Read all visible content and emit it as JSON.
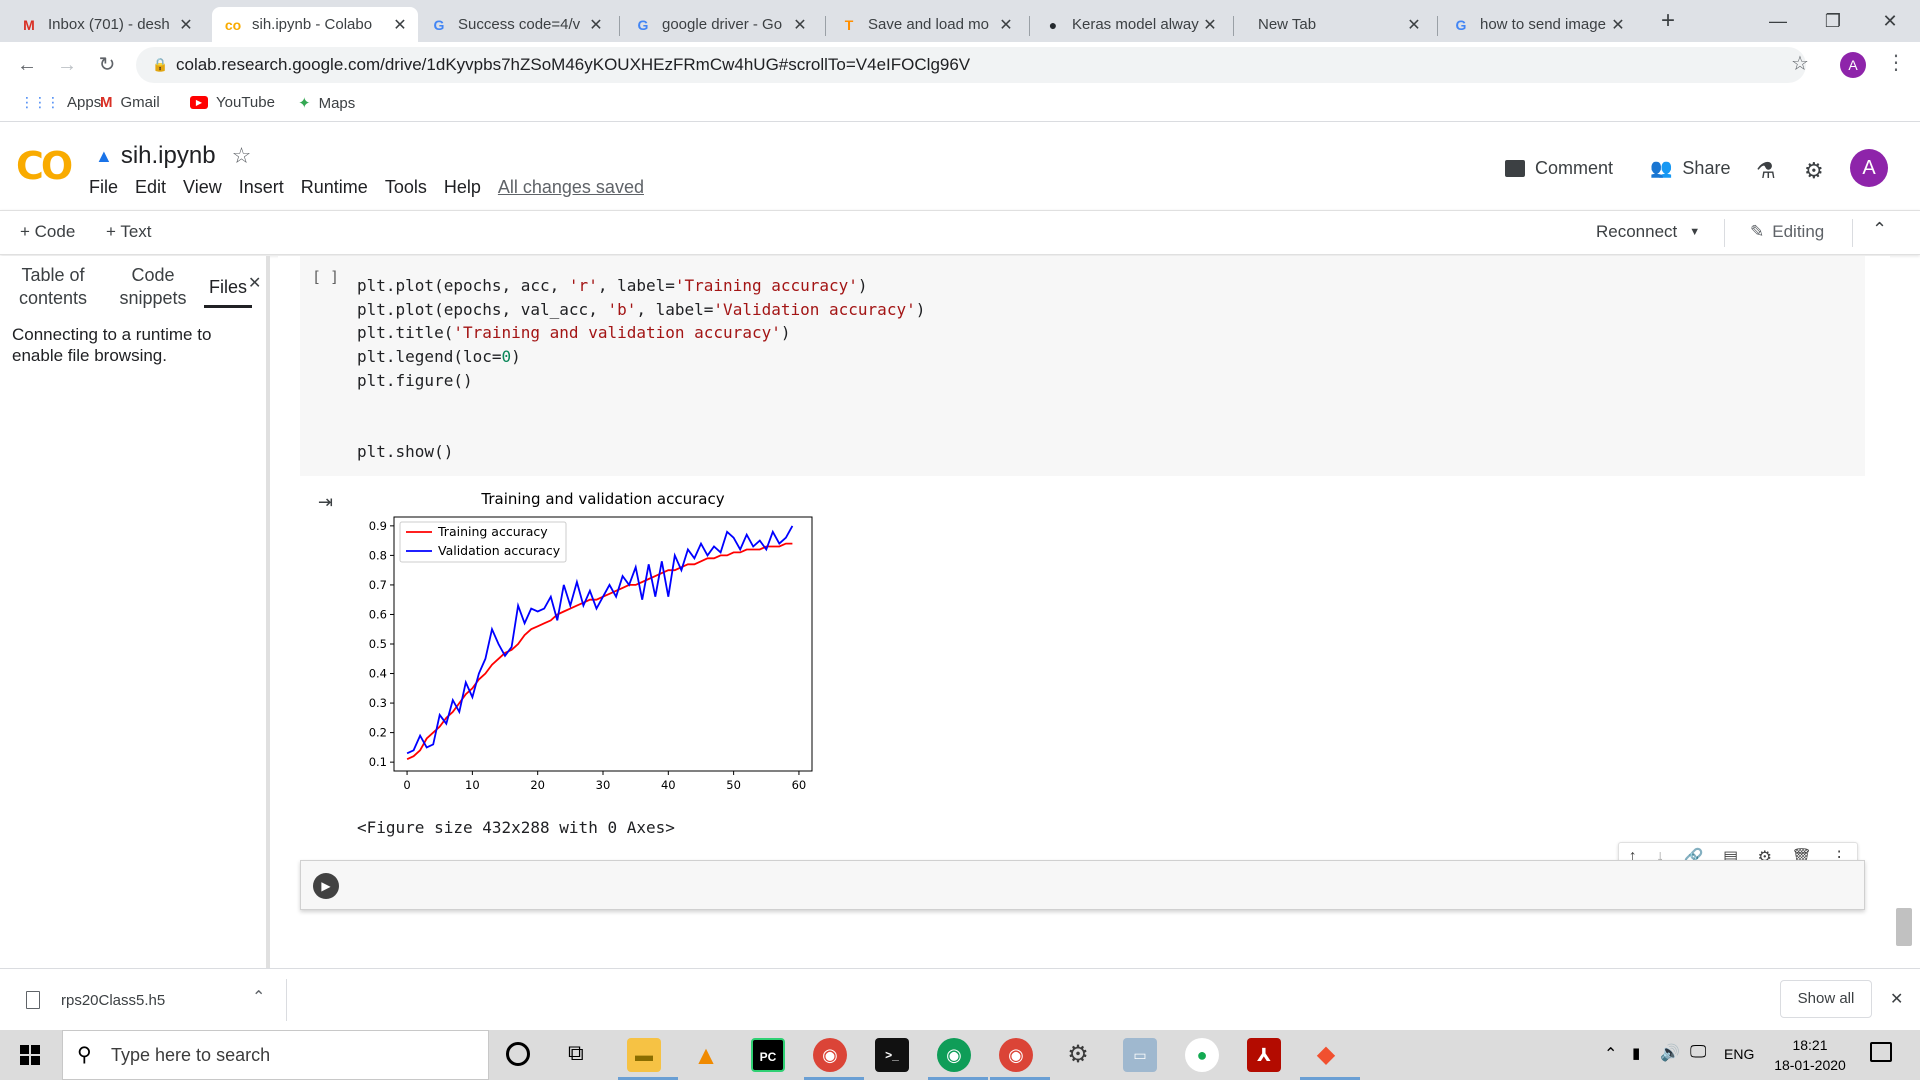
{
  "browser": {
    "tabs": [
      {
        "title": "Inbox (701) - desh",
        "icon": "gmail-icon",
        "glyph": "M",
        "color": "#d93025"
      },
      {
        "title": "sih.ipynb - Colabo",
        "icon": "colab-icon",
        "glyph": "co",
        "color": "#f9ab00"
      },
      {
        "title": "Success code=4/v",
        "icon": "google-icon",
        "glyph": "G",
        "color": "#4285f4"
      },
      {
        "title": "google driver - Go",
        "icon": "google-icon",
        "glyph": "G",
        "color": "#4285f4"
      },
      {
        "title": "Save and load mo",
        "icon": "tensorflow-icon",
        "glyph": "T",
        "color": "#ff8f00"
      },
      {
        "title": "Keras model alway",
        "icon": "github-icon",
        "glyph": "●",
        "color": "#24292e"
      },
      {
        "title": "New Tab",
        "icon": "",
        "glyph": "",
        "color": "#3c4043"
      },
      {
        "title": "how to send image",
        "icon": "google-icon",
        "glyph": "G",
        "color": "#4285f4"
      }
    ],
    "new_tab": "+",
    "url": "colab.research.google.com/drive/1dKyvpbs7hZSoM46yKOUXHEzFRmCw4hUG#scrollTo=V4eIFOClg96V",
    "profile_initial": "A",
    "bookmarks": [
      {
        "label": "Apps",
        "icon": "apps-grid-icon"
      },
      {
        "label": "Gmail",
        "icon": "gmail-icon"
      },
      {
        "label": "YouTube",
        "icon": "youtube-icon"
      },
      {
        "label": "Maps",
        "icon": "maps-icon"
      }
    ]
  },
  "colab": {
    "logo": "CO",
    "notebook_name": "sih.ipynb",
    "menu": [
      "File",
      "Edit",
      "View",
      "Insert",
      "Runtime",
      "Tools",
      "Help"
    ],
    "save_status": "All changes saved",
    "comment": "Comment",
    "share": "Share",
    "user_initial": "A",
    "add_code": "+ Code",
    "add_text": "+ Text",
    "reconnect": "Reconnect",
    "editing": "Editing"
  },
  "sidebar": {
    "tabs": [
      "Table of contents",
      "Code snippets",
      "Files"
    ],
    "message": "Connecting to a runtime to enable file browsing."
  },
  "cell": {
    "bracket": "[ ]",
    "figure_text": "<Figure size 432x288 with 0 Axes>"
  },
  "chart_data": {
    "type": "line",
    "title": "Training and validation accuracy",
    "xlabel": "",
    "ylabel": "",
    "xlim": [
      -2,
      62
    ],
    "ylim": [
      0.07,
      0.93
    ],
    "xticks": [
      0,
      10,
      20,
      30,
      40,
      50,
      60
    ],
    "yticks": [
      0.1,
      0.2,
      0.3,
      0.4,
      0.5,
      0.6,
      0.7,
      0.8,
      0.9
    ],
    "legend_position": "top-left",
    "series": [
      {
        "name": "Training accuracy",
        "color": "#ff0000",
        "x": [
          0,
          1,
          2,
          3,
          4,
          5,
          6,
          7,
          8,
          9,
          10,
          11,
          12,
          13,
          14,
          15,
          16,
          17,
          18,
          19,
          20,
          21,
          22,
          23,
          24,
          25,
          26,
          27,
          28,
          29,
          30,
          31,
          32,
          33,
          34,
          35,
          36,
          37,
          38,
          39,
          40,
          41,
          42,
          43,
          44,
          45,
          46,
          47,
          48,
          49,
          50,
          51,
          52,
          53,
          54,
          55,
          56,
          57,
          58,
          59
        ],
        "y": [
          0.11,
          0.12,
          0.14,
          0.18,
          0.2,
          0.22,
          0.25,
          0.27,
          0.3,
          0.33,
          0.35,
          0.38,
          0.4,
          0.43,
          0.45,
          0.47,
          0.48,
          0.5,
          0.53,
          0.55,
          0.56,
          0.57,
          0.58,
          0.6,
          0.61,
          0.62,
          0.63,
          0.64,
          0.65,
          0.65,
          0.66,
          0.67,
          0.68,
          0.69,
          0.7,
          0.7,
          0.71,
          0.72,
          0.73,
          0.74,
          0.75,
          0.75,
          0.76,
          0.77,
          0.77,
          0.78,
          0.79,
          0.79,
          0.8,
          0.8,
          0.81,
          0.81,
          0.82,
          0.82,
          0.82,
          0.83,
          0.83,
          0.83,
          0.84,
          0.84
        ]
      },
      {
        "name": "Validation accuracy",
        "color": "#0000ff",
        "x": [
          0,
          1,
          2,
          3,
          4,
          5,
          6,
          7,
          8,
          9,
          10,
          11,
          12,
          13,
          14,
          15,
          16,
          17,
          18,
          19,
          20,
          21,
          22,
          23,
          24,
          25,
          26,
          27,
          28,
          29,
          30,
          31,
          32,
          33,
          34,
          35,
          36,
          37,
          38,
          39,
          40,
          41,
          42,
          43,
          44,
          45,
          46,
          47,
          48,
          49,
          50,
          51,
          52,
          53,
          54,
          55,
          56,
          57,
          58,
          59
        ],
        "y": [
          0.13,
          0.14,
          0.19,
          0.15,
          0.16,
          0.26,
          0.23,
          0.31,
          0.27,
          0.37,
          0.32,
          0.4,
          0.45,
          0.55,
          0.5,
          0.46,
          0.49,
          0.63,
          0.57,
          0.62,
          0.61,
          0.62,
          0.66,
          0.58,
          0.7,
          0.63,
          0.71,
          0.63,
          0.68,
          0.62,
          0.66,
          0.7,
          0.66,
          0.73,
          0.7,
          0.76,
          0.65,
          0.77,
          0.66,
          0.78,
          0.66,
          0.8,
          0.75,
          0.82,
          0.79,
          0.84,
          0.8,
          0.83,
          0.81,
          0.88,
          0.86,
          0.82,
          0.87,
          0.83,
          0.85,
          0.82,
          0.88,
          0.84,
          0.86,
          0.9
        ]
      }
    ]
  },
  "downloads": {
    "file": "rps20Class5.h5",
    "show_all": "Show all"
  },
  "taskbar": {
    "search_placeholder": "Type here to search",
    "language": "ENG",
    "time": "18:21",
    "date": "18-01-2020"
  }
}
